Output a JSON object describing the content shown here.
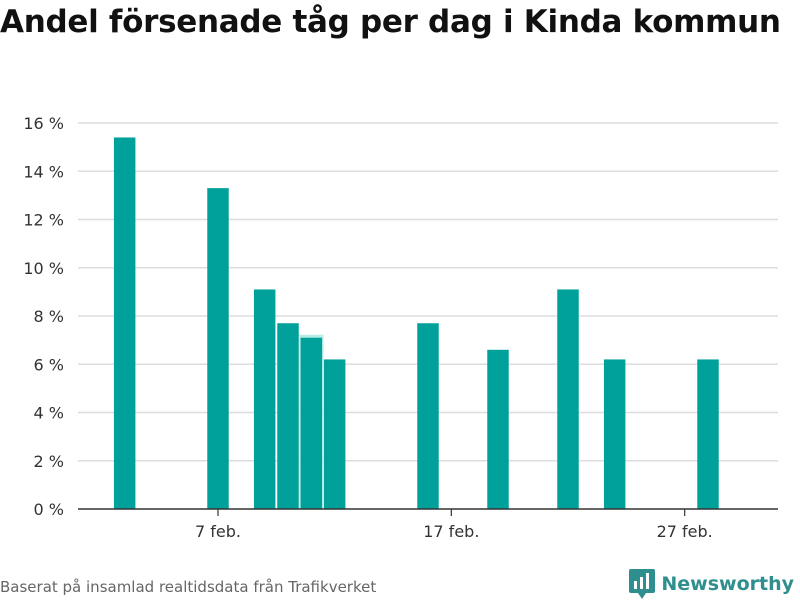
{
  "title": "Andel försenade tåg per dag i Kinda kommun",
  "source": "Baserat på insamlad realtidsdata från Trafikverket",
  "brand": {
    "name": "Newsworthy",
    "icon": "newsworthy-logo-icon"
  },
  "colors": {
    "bar": "#00a19a",
    "highlight": "#b9ece6",
    "grid": "#dddddd",
    "axis": "#333333"
  },
  "chart_data": {
    "type": "bar",
    "title": "Andel försenade tåg per dag i Kinda kommun",
    "xlabel": "",
    "ylabel": "",
    "x_range": [
      "2024-02-01",
      "2024-03-02"
    ],
    "ylim": [
      0,
      16
    ],
    "yticks": [
      0,
      2,
      4,
      6,
      8,
      10,
      12,
      14,
      16
    ],
    "ytick_labels": [
      "0 %",
      "2 %",
      "4 %",
      "6 %",
      "8 %",
      "10 %",
      "12 %",
      "14 %",
      "16 %"
    ],
    "xticks": [
      "2024-02-07",
      "2024-02-17",
      "2024-02-27"
    ],
    "xtick_labels": [
      "7 feb.",
      "17 feb.",
      "27 feb."
    ],
    "grid": true,
    "highlight_date": "2024-02-11",
    "x": [
      "2024-02-03",
      "2024-02-07",
      "2024-02-09",
      "2024-02-10",
      "2024-02-11",
      "2024-02-12",
      "2024-02-16",
      "2024-02-19",
      "2024-02-22",
      "2024-02-24",
      "2024-02-28"
    ],
    "values": [
      15.4,
      13.3,
      9.1,
      7.7,
      7.1,
      6.2,
      7.7,
      6.6,
      9.1,
      6.2,
      6.2
    ]
  }
}
